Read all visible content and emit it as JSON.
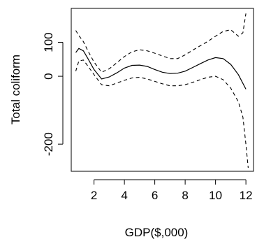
{
  "chart_data": {
    "type": "line",
    "title": "",
    "xlabel": "GDP($,000)",
    "ylabel": "Total coliform",
    "xlim": [
      0.5,
      12.5
    ],
    "ylim": [
      -280,
      200
    ],
    "x_ticks": [
      2,
      4,
      6,
      8,
      10,
      12
    ],
    "x_tick_labels": [
      "2",
      "4",
      "6",
      "8",
      "10",
      "12"
    ],
    "y_ticks": [
      -200,
      0,
      100
    ],
    "y_tick_labels": [
      "-200",
      "0",
      "100"
    ],
    "grid": false,
    "legend": "none",
    "series": [
      {
        "role": "fit",
        "style": "solid",
        "x": [
          0.8,
          1.0,
          1.3,
          1.6,
          2.0,
          2.5,
          3.0,
          3.5,
          4.0,
          4.5,
          5.0,
          5.5,
          6.0,
          6.5,
          7.0,
          7.5,
          8.0,
          8.5,
          9.0,
          9.5,
          10.0,
          10.5,
          11.0,
          11.5,
          12.0
        ],
        "y": [
          70,
          82,
          75,
          52,
          20,
          -8,
          -2,
          10,
          24,
          32,
          33,
          29,
          20,
          12,
          8,
          9,
          15,
          26,
          37,
          48,
          55,
          52,
          35,
          5,
          -38
        ]
      },
      {
        "role": "upper",
        "style": "dashed",
        "x": [
          0.8,
          1.0,
          1.3,
          1.6,
          2.0,
          2.5,
          3.0,
          3.5,
          4.0,
          4.5,
          5.0,
          5.5,
          6.0,
          6.5,
          7.0,
          7.5,
          8.0,
          8.5,
          9.0,
          9.5,
          10.0,
          10.5,
          11.0,
          11.5,
          11.8,
          12.0
        ],
        "y": [
          135,
          120,
          102,
          75,
          42,
          12,
          22,
          40,
          58,
          72,
          78,
          75,
          68,
          60,
          52,
          52,
          63,
          77,
          90,
          103,
          118,
          132,
          137,
          118,
          128,
          185
        ]
      },
      {
        "role": "lower",
        "style": "dashed",
        "x": [
          0.8,
          1.0,
          1.3,
          1.6,
          2.0,
          2.5,
          3.0,
          3.5,
          4.0,
          4.5,
          5.0,
          5.5,
          6.0,
          6.5,
          7.0,
          7.5,
          8.0,
          8.5,
          9.0,
          9.5,
          10.0,
          10.5,
          11.0,
          11.5,
          11.8,
          12.0,
          12.15
        ],
        "y": [
          15,
          45,
          48,
          30,
          5,
          -25,
          -28,
          -20,
          -12,
          -5,
          -3,
          -8,
          -15,
          -22,
          -28,
          -28,
          -25,
          -18,
          -10,
          -3,
          0,
          -10,
          -35,
          -75,
          -120,
          -200,
          -270
        ]
      }
    ]
  }
}
